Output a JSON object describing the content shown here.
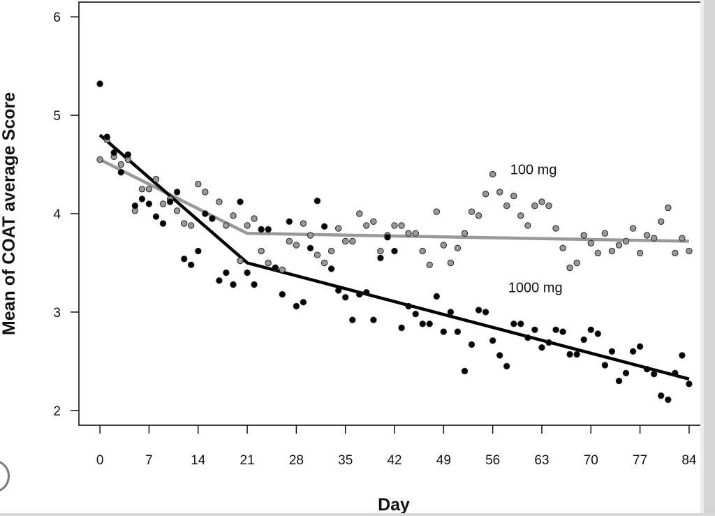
{
  "chart_data": {
    "type": "scatter",
    "title": "",
    "xlabel": "Day",
    "ylabel": "Mean of COAT average Score",
    "xlim": [
      -3,
      86
    ],
    "ylim": [
      1.85,
      6.15
    ],
    "x_ticks": [
      0,
      7,
      14,
      21,
      28,
      35,
      42,
      49,
      56,
      63,
      70,
      77,
      84
    ],
    "y_ticks": [
      2,
      3,
      4,
      5,
      6
    ],
    "grid": false,
    "series": [
      {
        "name": "100 mg",
        "color": "#999999",
        "points": [
          [
            0,
            4.55
          ],
          [
            1,
            4.75
          ],
          [
            2,
            4.58
          ],
          [
            3,
            4.5
          ],
          [
            4,
            4.55
          ],
          [
            5,
            4.03
          ],
          [
            6,
            4.25
          ],
          [
            7,
            4.25
          ],
          [
            8,
            4.35
          ],
          [
            9,
            4.1
          ],
          [
            10,
            4.15
          ],
          [
            11,
            4.03
          ],
          [
            12,
            3.9
          ],
          [
            13,
            3.88
          ],
          [
            14,
            4.3
          ],
          [
            15,
            4.22
          ],
          [
            16,
            3.95
          ],
          [
            17,
            4.12
          ],
          [
            18,
            3.88
          ],
          [
            19,
            3.98
          ],
          [
            20,
            3.52
          ],
          [
            21,
            3.88
          ],
          [
            22,
            3.95
          ],
          [
            23,
            3.62
          ],
          [
            24,
            3.5
          ],
          [
            25,
            3.45
          ],
          [
            26,
            3.43
          ],
          [
            27,
            3.72
          ],
          [
            28,
            3.68
          ],
          [
            29,
            3.9
          ],
          [
            30,
            3.78
          ],
          [
            31,
            3.58
          ],
          [
            32,
            3.5
          ],
          [
            33,
            3.62
          ],
          [
            34,
            3.85
          ],
          [
            35,
            3.72
          ],
          [
            36,
            3.72
          ],
          [
            37,
            4.0
          ],
          [
            38,
            3.88
          ],
          [
            39,
            3.92
          ],
          [
            40,
            3.62
          ],
          [
            41,
            3.78
          ],
          [
            42,
            3.88
          ],
          [
            43,
            3.88
          ],
          [
            44,
            3.8
          ],
          [
            45,
            3.8
          ],
          [
            46,
            3.62
          ],
          [
            47,
            3.48
          ],
          [
            48,
            4.02
          ],
          [
            49,
            3.68
          ],
          [
            50,
            3.5
          ],
          [
            51,
            3.65
          ],
          [
            52,
            3.8
          ],
          [
            53,
            4.02
          ],
          [
            54,
            3.98
          ],
          [
            55,
            4.2
          ],
          [
            56,
            4.4
          ],
          [
            57,
            4.22
          ],
          [
            58,
            4.08
          ],
          [
            59,
            4.18
          ],
          [
            60,
            3.98
          ],
          [
            61,
            3.88
          ],
          [
            62,
            4.08
          ],
          [
            63,
            4.12
          ],
          [
            64,
            4.08
          ],
          [
            65,
            3.85
          ],
          [
            66,
            3.65
          ],
          [
            67,
            3.45
          ],
          [
            68,
            3.5
          ],
          [
            69,
            3.78
          ],
          [
            70,
            3.7
          ],
          [
            71,
            3.6
          ],
          [
            72,
            3.8
          ],
          [
            73,
            3.62
          ],
          [
            74,
            3.68
          ],
          [
            75,
            3.72
          ],
          [
            76,
            3.85
          ],
          [
            77,
            3.6
          ],
          [
            78,
            3.78
          ],
          [
            79,
            3.75
          ],
          [
            80,
            3.92
          ],
          [
            81,
            4.06
          ],
          [
            82,
            3.6
          ],
          [
            83,
            3.75
          ],
          [
            84,
            3.62
          ]
        ],
        "fit": [
          [
            0,
            4.55
          ],
          [
            21,
            3.8
          ],
          [
            84,
            3.72
          ]
        ]
      },
      {
        "name": "1000 mg",
        "color": "#000000",
        "points": [
          [
            0,
            5.32
          ],
          [
            1,
            4.78
          ],
          [
            2,
            4.62
          ],
          [
            3,
            4.42
          ],
          [
            4,
            4.6
          ],
          [
            5,
            4.08
          ],
          [
            6,
            4.15
          ],
          [
            7,
            4.1
          ],
          [
            8,
            3.97
          ],
          [
            9,
            3.9
          ],
          [
            10,
            4.12
          ],
          [
            11,
            4.22
          ],
          [
            12,
            3.54
          ],
          [
            13,
            3.48
          ],
          [
            14,
            3.62
          ],
          [
            15,
            4.0
          ],
          [
            16,
            3.95
          ],
          [
            17,
            3.32
          ],
          [
            18,
            3.4
          ],
          [
            19,
            3.28
          ],
          [
            20,
            4.12
          ],
          [
            21,
            3.4
          ],
          [
            22,
            3.28
          ],
          [
            23,
            3.84
          ],
          [
            24,
            3.84
          ],
          [
            25,
            3.45
          ],
          [
            26,
            3.18
          ],
          [
            27,
            3.92
          ],
          [
            28,
            3.06
          ],
          [
            29,
            3.1
          ],
          [
            30,
            3.65
          ],
          [
            31,
            4.13
          ],
          [
            32,
            3.87
          ],
          [
            33,
            3.44
          ],
          [
            34,
            3.22
          ],
          [
            35,
            3.15
          ],
          [
            36,
            2.92
          ],
          [
            37,
            3.18
          ],
          [
            38,
            3.2
          ],
          [
            39,
            2.92
          ],
          [
            40,
            3.55
          ],
          [
            41,
            3.76
          ],
          [
            42,
            3.62
          ],
          [
            43,
            2.84
          ],
          [
            44,
            3.06
          ],
          [
            45,
            2.98
          ],
          [
            46,
            2.88
          ],
          [
            47,
            2.88
          ],
          [
            48,
            3.16
          ],
          [
            49,
            2.8
          ],
          [
            50,
            3.0
          ],
          [
            51,
            2.8
          ],
          [
            52,
            2.4
          ],
          [
            53,
            2.67
          ],
          [
            54,
            3.02
          ],
          [
            55,
            3.0
          ],
          [
            56,
            2.71
          ],
          [
            57,
            2.56
          ],
          [
            58,
            2.45
          ],
          [
            59,
            2.88
          ],
          [
            60,
            2.88
          ],
          [
            61,
            2.74
          ],
          [
            62,
            2.82
          ],
          [
            63,
            2.64
          ],
          [
            64,
            2.69
          ],
          [
            65,
            2.82
          ],
          [
            66,
            2.8
          ],
          [
            67,
            2.57
          ],
          [
            68,
            2.57
          ],
          [
            69,
            2.72
          ],
          [
            70,
            2.82
          ],
          [
            71,
            2.78
          ],
          [
            72,
            2.46
          ],
          [
            73,
            2.6
          ],
          [
            74,
            2.3
          ],
          [
            75,
            2.38
          ],
          [
            76,
            2.6
          ],
          [
            77,
            2.65
          ],
          [
            78,
            2.42
          ],
          [
            79,
            2.37
          ],
          [
            80,
            2.15
          ],
          [
            81,
            2.11
          ],
          [
            82,
            2.38
          ],
          [
            83,
            2.56
          ],
          [
            84,
            2.27
          ]
        ],
        "fit": [
          [
            0,
            4.8
          ],
          [
            21,
            3.5
          ],
          [
            84,
            2.32
          ]
        ]
      }
    ],
    "annotations": [
      {
        "text": "100 mg",
        "x": 58.5,
        "y": 4.4
      },
      {
        "text": "1000 mg",
        "x": 58.2,
        "y": 3.2
      }
    ]
  }
}
